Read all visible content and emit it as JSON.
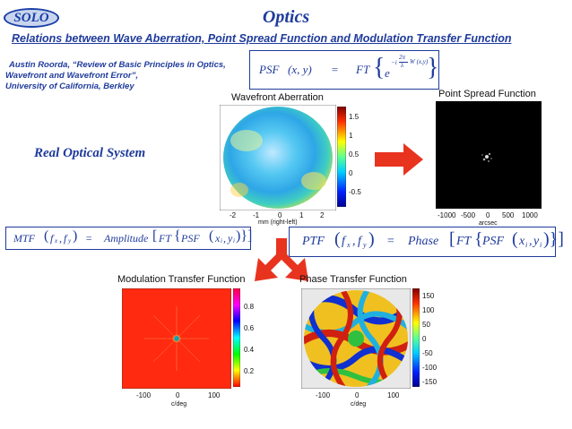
{
  "header": {
    "badge": "SOLO",
    "title": "Optics",
    "subtitle": "Relations between Wave Aberration, Point Spread Function and Modulation Transfer Function"
  },
  "reference": {
    "line1": "Austin Roorda, “Review of Basic Principles in Optics,",
    "line2": "Wavefront and Wavefront Error”,",
    "line3": "University of California, Berkley"
  },
  "section_label": "Real  Optical  System",
  "equations": {
    "psf": {
      "lhs": "PSF",
      "args": "(x, y)",
      "eq": "=",
      "op": "FT",
      "base": "e",
      "exp_sign": "−i",
      "exp_num": "2π",
      "exp_den": "λ",
      "exp_func": "W (x,y)"
    },
    "mtf": {
      "lhs": "MTF",
      "args_fx": "f",
      "args_fx_sub": "x",
      "args_fy": "f",
      "args_fy_sub": "y",
      "eq": "=",
      "op": "Amplitude",
      "op2": "FT",
      "op3": "PSF",
      "inner_x": "x",
      "inner_x_sub": "i",
      "inner_y": "y",
      "inner_y_sub": "i"
    },
    "ptf": {
      "lhs": "PTF",
      "args_fx": "f",
      "args_fx_sub": "x",
      "args_fy": "f",
      "args_fy_sub": "y",
      "eq": "=",
      "op": "Phase",
      "op2": "FT",
      "op3": "PSF",
      "inner_x": "x",
      "inner_x_sub": "i",
      "inner_y": "y",
      "inner_y_sub": "i"
    }
  },
  "plots": {
    "wavefront": {
      "title": "Wavefront Aberration",
      "xticks": [
        "-2",
        "-1",
        "0",
        "1",
        "2"
      ],
      "xlabel": "mm (right-left)",
      "cbar_ticks": [
        "1.5",
        "1",
        "0.5",
        "0",
        "-0.5"
      ]
    },
    "psf": {
      "title": "Point Spread Function",
      "xticks": [
        "-1000",
        "-500",
        "0",
        "500",
        "1000"
      ],
      "xlabel": "arcsec"
    },
    "mtf": {
      "title": "Modulation Transfer Function",
      "xticks": [
        "-100",
        "0",
        "100"
      ],
      "xlabel": "c/deg",
      "cbar_ticks": [
        "0.8",
        "0.6",
        "0.4",
        "0.2"
      ]
    },
    "ptf": {
      "title": "Phase Transfer Function",
      "xticks": [
        "-100",
        "0",
        "100"
      ],
      "xlabel": "c/deg",
      "cbar_ticks": [
        "150",
        "100",
        "50",
        "0",
        "-50",
        "-100",
        "-150"
      ]
    }
  },
  "colors": {
    "title_blue": "#1f3b9c",
    "arrow_red": "#e8331f"
  }
}
